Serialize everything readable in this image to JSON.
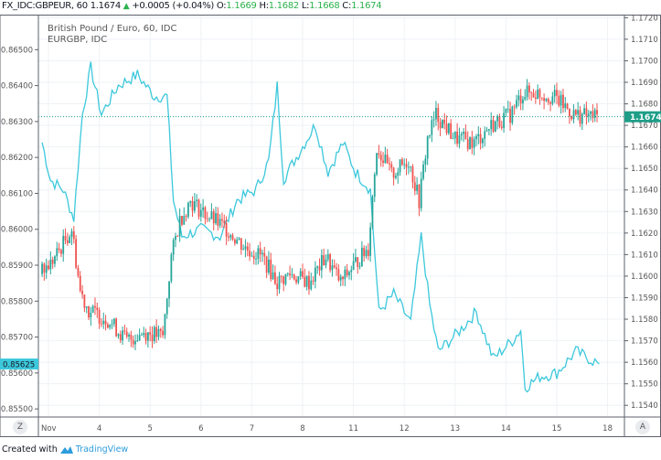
{
  "header": {
    "symbol": "FX_IDC:GBPEUR, 60",
    "last": "1.1674",
    "change": "+0.0005 (+0.04%)",
    "open_label": "O:",
    "open": "1.1669",
    "high_label": "H:",
    "high": "1.1682",
    "low_label": "L:",
    "low": "1.1668",
    "close_label": "C:",
    "close": "1.1674",
    "up_icon": "triangle-up-icon"
  },
  "legend": {
    "main": "British Pound / Euro, 60, IDC",
    "compare": "EURGBP, IDC"
  },
  "buttons": {
    "left_scale": "Z",
    "right_scale": "A"
  },
  "footer": {
    "created_with": "Created with",
    "brand": "TradingView"
  },
  "colors": {
    "up": "#26a69a",
    "down": "#ef5350",
    "compare_line": "#3cc8dc",
    "last_price_bg": "#1e9e88",
    "compare_price_bg": "#3cc8dc",
    "grid": "#eef2f6"
  },
  "chart_data": {
    "type": "candlestick",
    "grid": true,
    "x_ticks": [
      "Nov",
      "4",
      "5",
      "6",
      "7",
      "8",
      "11",
      "12",
      "13",
      "14",
      "15",
      "18"
    ],
    "right_axis": {
      "ylim": [
        1.1535,
        1.1721
      ],
      "ticks": [
        "1.1720",
        "1.1710",
        "1.1700",
        "1.1690",
        "1.1680",
        "1.1670",
        "1.1660",
        "1.1650",
        "1.1640",
        "1.1630",
        "1.1620",
        "1.1610",
        "1.1600",
        "1.1590",
        "1.1580",
        "1.1570",
        "1.1560",
        "1.1550",
        "1.1540"
      ],
      "last_value": "1.1674"
    },
    "left_axis": {
      "ylim": [
        0.8548,
        0.86595
      ],
      "ticks": [
        "0.86500",
        "0.86400",
        "0.86300",
        "0.86200",
        "0.86100",
        "0.86000",
        "0.85900",
        "0.85800",
        "0.85700",
        "0.85600",
        "0.85500"
      ],
      "last_value": "0.85625"
    },
    "series": [
      {
        "name": "FX_IDC:GBPEUR",
        "axis": "right",
        "style": "candles",
        "points": [
          [
            "10-31 21:00",
            1.1601
          ],
          [
            "11-01 03:00",
            1.1607
          ],
          [
            "11-01 12:00",
            1.1622
          ],
          [
            "11-01 16:00",
            1.1593
          ],
          [
            "11-01 20:00",
            1.1584
          ],
          [
            "11-04 05:00",
            1.158
          ],
          [
            "11-04 14:00",
            1.157
          ],
          [
            "11-04 22:00",
            1.1574
          ],
          [
            "11-05 07:00",
            1.1572
          ],
          [
            "11-05 11:00",
            1.1609
          ],
          [
            "11-05 15:00",
            1.1626
          ],
          [
            "11-05 20:00",
            1.1635
          ],
          [
            "11-06 04:00",
            1.1628
          ],
          [
            "11-06 13:00",
            1.1622
          ],
          [
            "11-06 22:00",
            1.1613
          ],
          [
            "11-07 06:00",
            1.1609
          ],
          [
            "11-07 13:00",
            1.1597
          ],
          [
            "11-07 19:00",
            1.1601
          ],
          [
            "11-08 04:00",
            1.1597
          ],
          [
            "11-08 12:00",
            1.1609
          ],
          [
            "11-08 19:00",
            1.1597
          ],
          [
            "11-11 01:00",
            1.1605
          ],
          [
            "11-11 08:00",
            1.1613
          ],
          [
            "11-11 12:00",
            1.166
          ],
          [
            "11-11 19:00",
            1.1647
          ],
          [
            "11-12 03:00",
            1.1654
          ],
          [
            "11-12 08:00",
            1.1635
          ],
          [
            "11-12 12:00",
            1.1664
          ],
          [
            "11-12 16:00",
            1.1675
          ],
          [
            "11-13 01:00",
            1.1664
          ],
          [
            "11-13 10:00",
            1.1662
          ],
          [
            "11-13 18:00",
            1.167
          ],
          [
            "11-14 03:00",
            1.1675
          ],
          [
            "11-14 09:00",
            1.1685
          ],
          [
            "11-14 16:00",
            1.1685
          ],
          [
            "11-15 00:00",
            1.1683
          ],
          [
            "11-15 09:00",
            1.1675
          ],
          [
            "11-15 20:00",
            1.1674
          ]
        ]
      },
      {
        "name": "EURGBP",
        "axis": "left",
        "style": "line",
        "points": [
          [
            "10-31 21:00",
            0.86242
          ],
          [
            "11-01 01:00",
            0.86137
          ],
          [
            "11-01 07:00",
            0.8611
          ],
          [
            "11-01 12:00",
            0.8603
          ],
          [
            "11-01 16:00",
            0.8632
          ],
          [
            "11-01 20:00",
            0.8645
          ],
          [
            "11-04 01:00",
            0.8632
          ],
          [
            "11-04 09:00",
            0.864
          ],
          [
            "11-04 18:00",
            0.8643
          ],
          [
            "11-05 02:00",
            0.8637
          ],
          [
            "11-05 08:00",
            0.8637
          ],
          [
            "11-05 11:00",
            0.8608
          ],
          [
            "11-05 15:00",
            0.8598
          ],
          [
            "11-06 00:00",
            0.86
          ],
          [
            "11-06 09:00",
            0.8598
          ],
          [
            "11-06 17:00",
            0.8608
          ],
          [
            "11-07 02:00",
            0.8611
          ],
          [
            "11-07 08:00",
            0.8619
          ],
          [
            "11-07 12:00",
            0.864
          ],
          [
            "11-07 15:00",
            0.8614
          ],
          [
            "11-07 23:00",
            0.8622
          ],
          [
            "11-08 06:00",
            0.8629
          ],
          [
            "11-08 12:00",
            0.8616
          ],
          [
            "11-08 19:00",
            0.8624
          ],
          [
            "11-11 01:00",
            0.8616
          ],
          [
            "11-11 08:00",
            0.8611
          ],
          [
            "11-11 12:00",
            0.8577
          ],
          [
            "11-11 19:00",
            0.8582
          ],
          [
            "11-12 03:00",
            0.8574
          ],
          [
            "11-12 08:00",
            0.8598
          ],
          [
            "11-12 12:00",
            0.8579
          ],
          [
            "11-12 16:00",
            0.8566
          ],
          [
            "11-13 01:00",
            0.8571
          ],
          [
            "11-13 10:00",
            0.8577
          ],
          [
            "11-13 18:00",
            0.8564
          ],
          [
            "11-14 03:00",
            0.8569
          ],
          [
            "11-14 07:00",
            0.8572
          ],
          [
            "11-14 09:00",
            0.8556
          ],
          [
            "11-14 16:00",
            0.8559
          ],
          [
            "11-15 00:00",
            0.856
          ],
          [
            "11-15 09:00",
            0.8566
          ],
          [
            "11-15 20:00",
            0.85625
          ]
        ]
      }
    ]
  }
}
